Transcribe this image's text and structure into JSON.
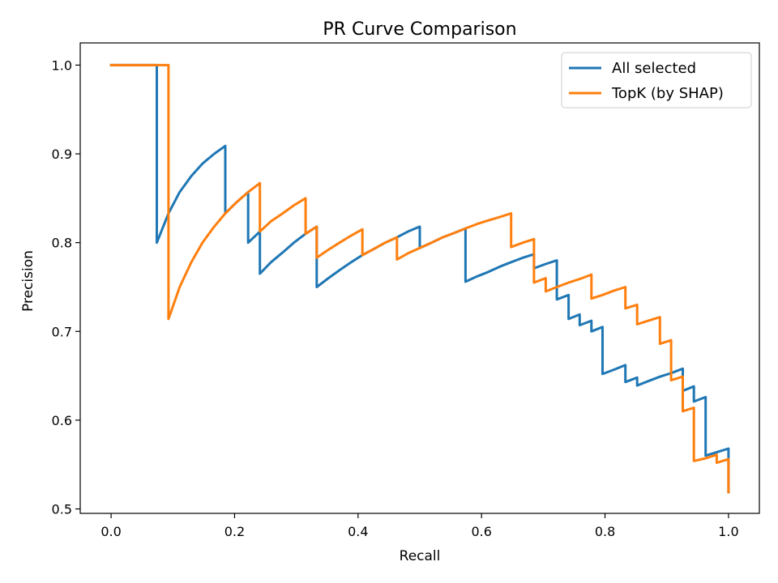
{
  "chart_data": {
    "type": "line",
    "title": "PR Curve Comparison",
    "xlabel": "Recall",
    "ylabel": "Precision",
    "xlim": [
      -0.05,
      1.05
    ],
    "ylim": [
      0.495,
      1.025
    ],
    "xticks": [
      0.0,
      0.2,
      0.4,
      0.6,
      0.8,
      1.0
    ],
    "xtick_labels": [
      "0.0",
      "0.2",
      "0.4",
      "0.6",
      "0.8",
      "1.0"
    ],
    "yticks": [
      0.5,
      0.6,
      0.7,
      0.8,
      0.9,
      1.0
    ],
    "ytick_labels": [
      "0.5",
      "0.6",
      "0.7",
      "0.8",
      "0.9",
      "1.0"
    ],
    "grid": false,
    "legend": "top-right",
    "series": [
      {
        "name": "All selected",
        "color": "#1f77b4",
        "x": [
          0.0,
          0.074,
          0.074,
          0.093,
          0.111,
          0.13,
          0.148,
          0.167,
          0.185,
          0.185,
          0.204,
          0.222,
          0.222,
          0.241,
          0.241,
          0.259,
          0.278,
          0.296,
          0.315,
          0.333,
          0.333,
          0.352,
          0.37,
          0.389,
          0.407,
          0.426,
          0.444,
          0.463,
          0.481,
          0.5,
          0.5,
          0.519,
          0.537,
          0.556,
          0.574,
          0.574,
          0.593,
          0.611,
          0.63,
          0.648,
          0.667,
          0.685,
          0.685,
          0.704,
          0.722,
          0.722,
          0.722,
          0.741,
          0.741,
          0.741,
          0.759,
          0.759,
          0.778,
          0.778,
          0.796,
          0.796,
          0.815,
          0.833,
          0.833,
          0.852,
          0.852,
          0.87,
          0.889,
          0.907,
          0.926,
          0.926,
          0.944,
          0.944,
          0.963,
          0.963,
          1.0,
          1.0
        ],
        "y": [
          1.0,
          1.0,
          0.8,
          0.833,
          0.857,
          0.875,
          0.889,
          0.9,
          0.909,
          0.833,
          0.846,
          0.857,
          0.8,
          0.8125,
          0.765,
          0.778,
          0.789,
          0.8,
          0.81,
          0.818,
          0.75,
          0.76,
          0.769,
          0.778,
          0.786,
          0.793,
          0.8,
          0.806,
          0.8125,
          0.818,
          0.794,
          0.8,
          0.806,
          0.811,
          0.816,
          0.756,
          0.762,
          0.767,
          0.773,
          0.778,
          0.783,
          0.787,
          0.771,
          0.776,
          0.78,
          0.765,
          0.736,
          0.741,
          0.727,
          0.714,
          0.719,
          0.707,
          0.712,
          0.7,
          0.705,
          0.652,
          0.657,
          0.662,
          0.643,
          0.648,
          0.639,
          0.644,
          0.649,
          0.653,
          0.658,
          0.633,
          0.638,
          0.621,
          0.626,
          0.56,
          0.568,
          0.519
        ]
      },
      {
        "name": "TopK (by SHAP)",
        "color": "#ff7f0e",
        "x": [
          0.0,
          0.093,
          0.093,
          0.111,
          0.13,
          0.148,
          0.167,
          0.185,
          0.204,
          0.222,
          0.241,
          0.241,
          0.259,
          0.278,
          0.296,
          0.315,
          0.315,
          0.333,
          0.333,
          0.352,
          0.37,
          0.389,
          0.407,
          0.407,
          0.426,
          0.444,
          0.463,
          0.463,
          0.481,
          0.5,
          0.519,
          0.537,
          0.556,
          0.574,
          0.593,
          0.611,
          0.63,
          0.648,
          0.648,
          0.667,
          0.685,
          0.685,
          0.704,
          0.704,
          0.722,
          0.741,
          0.759,
          0.778,
          0.778,
          0.796,
          0.815,
          0.833,
          0.833,
          0.852,
          0.852,
          0.87,
          0.889,
          0.889,
          0.907,
          0.907,
          0.926,
          0.926,
          0.944,
          0.944,
          0.963,
          0.981,
          0.981,
          1.0,
          1.0
        ],
        "y": [
          1.0,
          1.0,
          0.714,
          0.75,
          0.778,
          0.8,
          0.818,
          0.833,
          0.846,
          0.857,
          0.867,
          0.8125,
          0.824,
          0.833,
          0.842,
          0.85,
          0.81,
          0.818,
          0.783,
          0.792,
          0.8,
          0.808,
          0.815,
          0.786,
          0.793,
          0.8,
          0.806,
          0.781,
          0.788,
          0.794,
          0.8,
          0.806,
          0.811,
          0.816,
          0.821,
          0.825,
          0.829,
          0.833,
          0.795,
          0.8,
          0.804,
          0.755,
          0.76,
          0.745,
          0.75,
          0.755,
          0.759,
          0.764,
          0.737,
          0.741,
          0.746,
          0.75,
          0.726,
          0.73,
          0.708,
          0.712,
          0.716,
          0.686,
          0.69,
          0.645,
          0.649,
          0.61,
          0.614,
          0.554,
          0.557,
          0.561,
          0.552,
          0.556,
          0.519
        ]
      }
    ]
  }
}
